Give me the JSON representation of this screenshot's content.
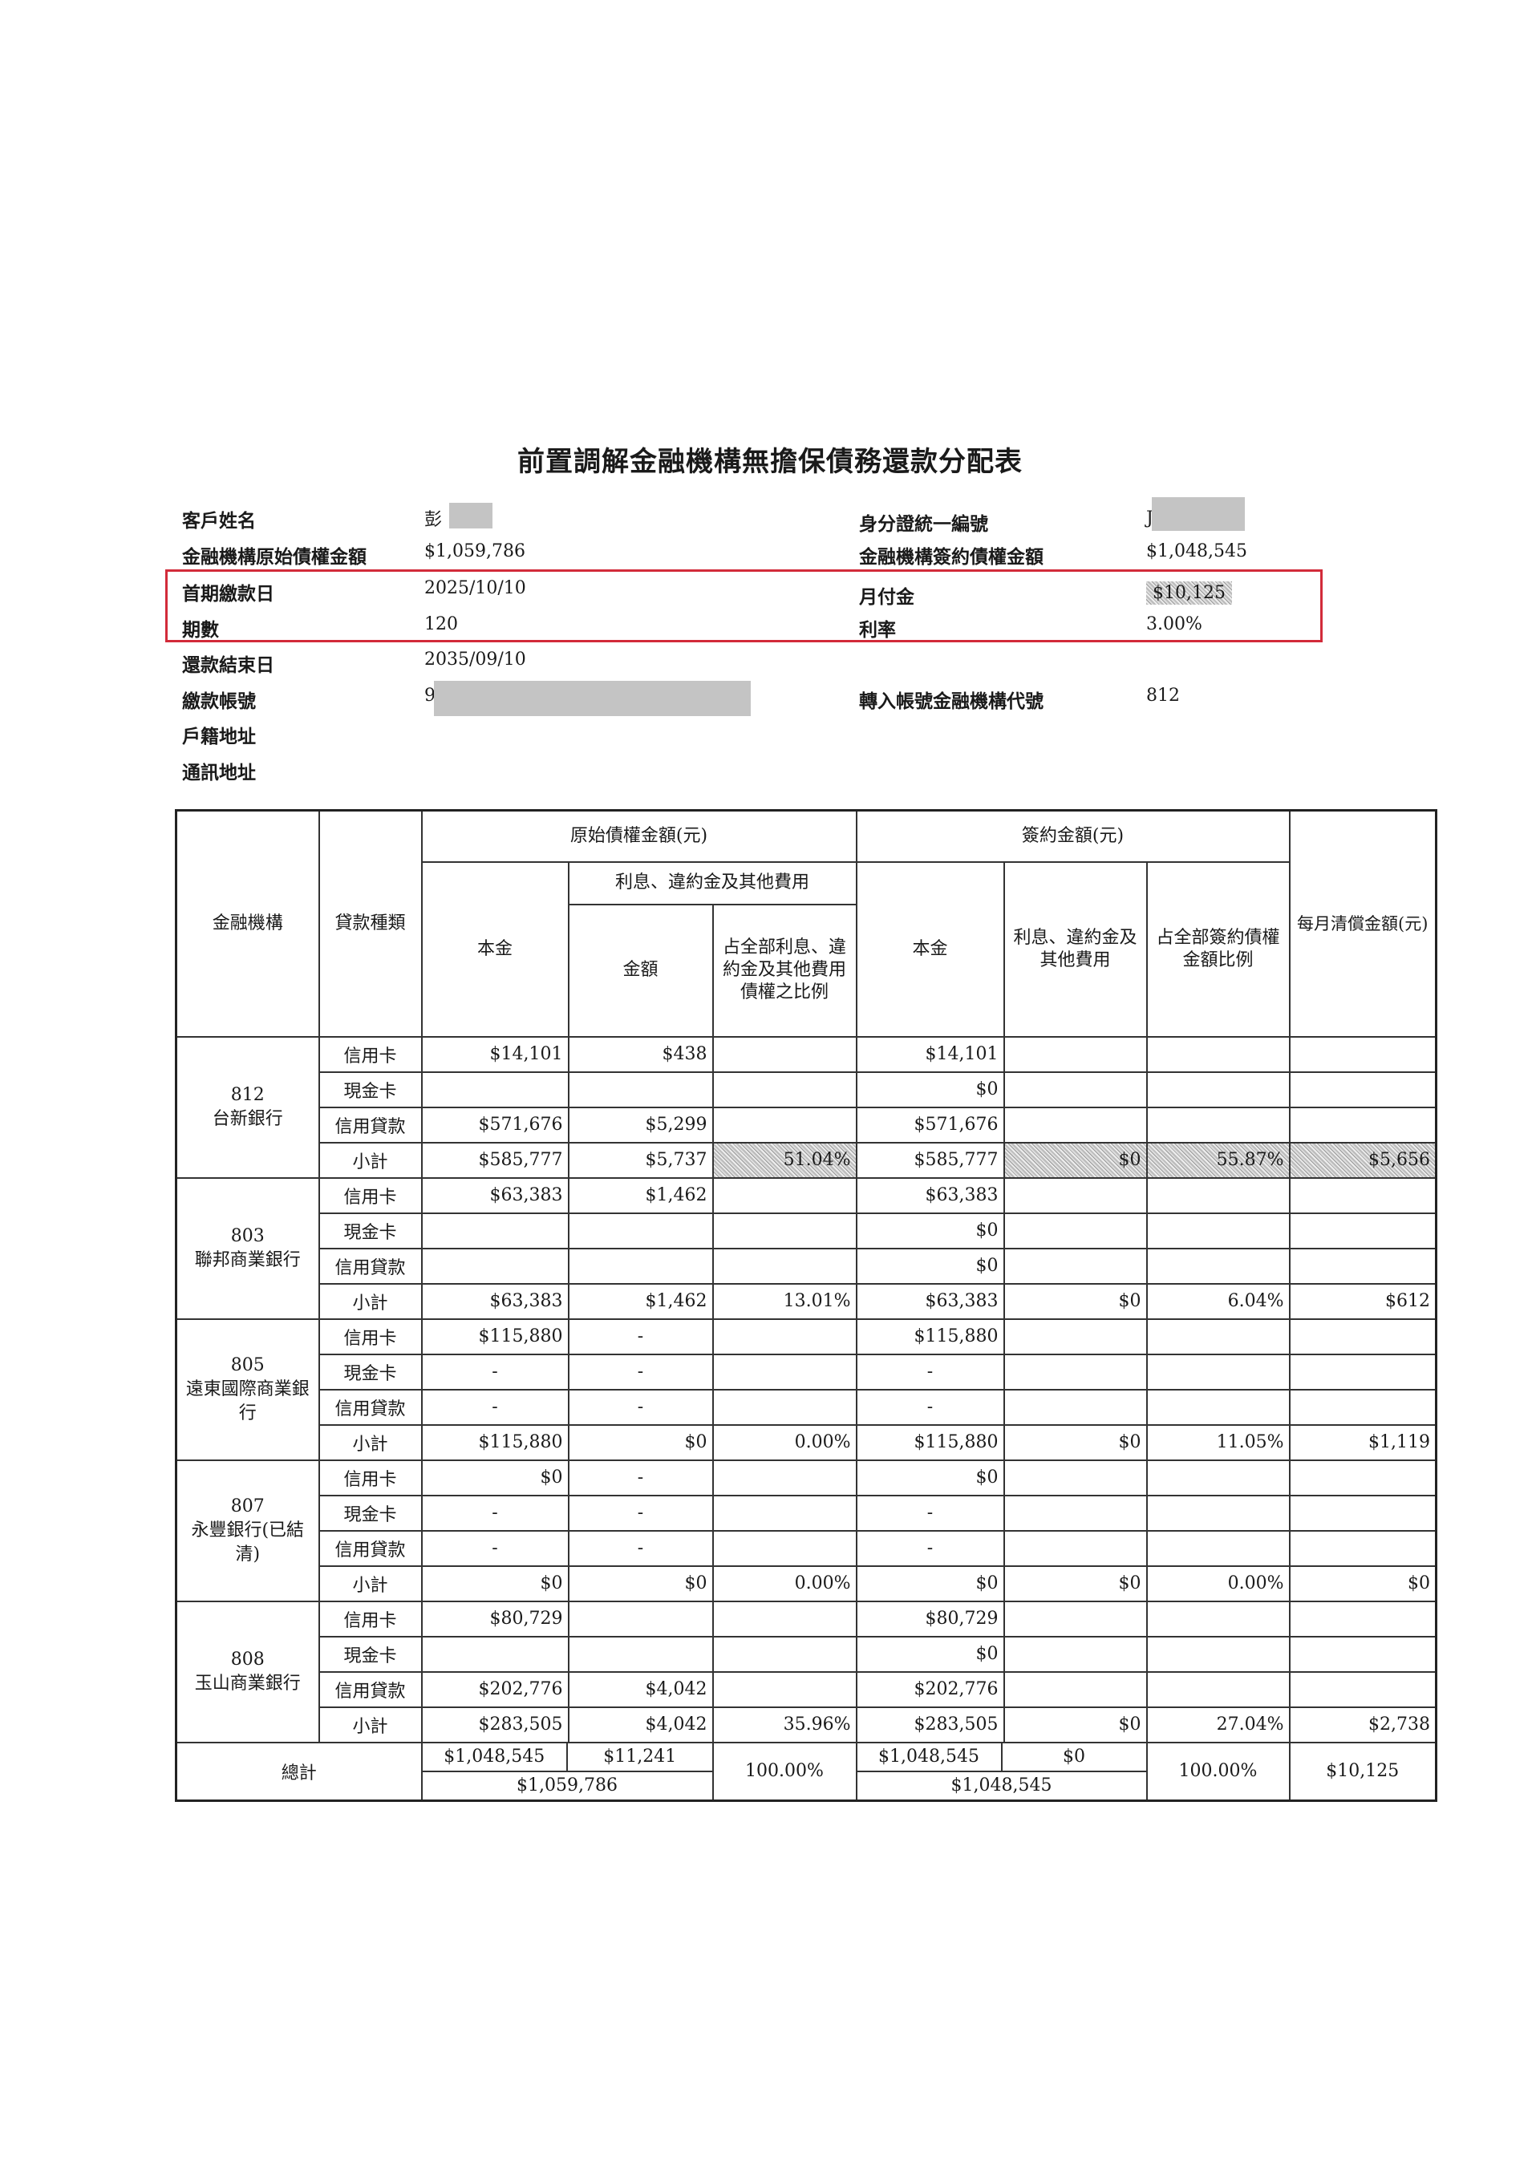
{
  "title": "前置調解金融機構無擔保債務還款分配表",
  "info_left": [
    {
      "label": "客戶姓名",
      "value": "彭"
    },
    {
      "label": "金融機構原始債權金額",
      "value": "$1,059,786"
    },
    {
      "label": "首期繳款日",
      "value": "2025/10/10"
    },
    {
      "label": "期數",
      "value": "120"
    },
    {
      "label": "還款結束日",
      "value": "2035/09/10"
    },
    {
      "label": "繳款帳號",
      "value": "9"
    },
    {
      "label": "戶籍地址",
      "value": ""
    },
    {
      "label": "通訊地址",
      "value": ""
    }
  ],
  "info_right": [
    {
      "label": "身分證統一編號",
      "value": "J"
    },
    {
      "label": "金融機構簽約債權金額",
      "value": "$1,048,545"
    },
    {
      "label": "月付金",
      "value": "$10,125"
    },
    {
      "label": "利率",
      "value": "3.00%"
    },
    {
      "label": "",
      "value": ""
    },
    {
      "label": "轉入帳號金融機構代號",
      "value": "812"
    }
  ],
  "highlight_color": "#d22b3a",
  "table": {
    "headers": {
      "institution": "金融機構",
      "loan_type": "貸款種類",
      "original_group": "原始債權金額(元)",
      "principal": "本金",
      "interest_group": "利息、違約金及其他費用",
      "amount": "金額",
      "interest_ratio": "占全部利息、違約金及其他費用債權之比例",
      "contract_group": "簽約金額(元)",
      "contract_principal": "本金",
      "contract_interest": "利息、違約金及其他費用",
      "contract_ratio": "占全部簽約債權金額比例",
      "monthly": "每月清償金額(元)"
    },
    "banks": [
      {
        "code": "812",
        "name": "台新銀行",
        "rows": [
          {
            "type": "信用卡",
            "c": [
              "$14,101",
              "$438",
              "",
              "$14,101",
              "",
              "",
              ""
            ]
          },
          {
            "type": "現金卡",
            "c": [
              "",
              "",
              "",
              "$0",
              "",
              "",
              ""
            ]
          },
          {
            "type": "信用貸款",
            "c": [
              "$571,676",
              "$5,299",
              "",
              "$571,676",
              "",
              "",
              ""
            ]
          },
          {
            "type": "小計",
            "c": [
              "$585,777",
              "$5,737",
              "51.04%",
              "$585,777",
              "$0",
              "55.87%",
              "$5,656"
            ],
            "shaded": true
          }
        ]
      },
      {
        "code": "803",
        "name": "聯邦商業銀行",
        "rows": [
          {
            "type": "信用卡",
            "c": [
              "$63,383",
              "$1,462",
              "",
              "$63,383",
              "",
              "",
              ""
            ]
          },
          {
            "type": "現金卡",
            "c": [
              "",
              "",
              "",
              "$0",
              "",
              "",
              ""
            ]
          },
          {
            "type": "信用貸款",
            "c": [
              "",
              "",
              "",
              "$0",
              "",
              "",
              ""
            ]
          },
          {
            "type": "小計",
            "c": [
              "$63,383",
              "$1,462",
              "13.01%",
              "$63,383",
              "$0",
              "6.04%",
              "$612"
            ]
          }
        ]
      },
      {
        "code": "805",
        "name": "遠東國際商業銀行",
        "rows": [
          {
            "type": "信用卡",
            "c": [
              "$115,880",
              "-",
              "",
              "$115,880",
              "",
              "",
              ""
            ]
          },
          {
            "type": "現金卡",
            "c": [
              "-",
              "-",
              "",
              "-",
              "",
              "",
              ""
            ]
          },
          {
            "type": "信用貸款",
            "c": [
              "-",
              "-",
              "",
              "-",
              "",
              "",
              ""
            ]
          },
          {
            "type": "小計",
            "c": [
              "$115,880",
              "$0",
              "0.00%",
              "$115,880",
              "$0",
              "11.05%",
              "$1,119"
            ]
          }
        ]
      },
      {
        "code": "807",
        "name": "永豐銀行(已結清)",
        "rows": [
          {
            "type": "信用卡",
            "c": [
              "$0",
              "-",
              "",
              "$0",
              "",
              "",
              ""
            ]
          },
          {
            "type": "現金卡",
            "c": [
              "-",
              "-",
              "",
              "-",
              "",
              "",
              ""
            ]
          },
          {
            "type": "信用貸款",
            "c": [
              "-",
              "-",
              "",
              "-",
              "",
              "",
              ""
            ]
          },
          {
            "type": "小計",
            "c": [
              "$0",
              "$0",
              "0.00%",
              "$0",
              "$0",
              "0.00%",
              "$0"
            ]
          }
        ]
      },
      {
        "code": "808",
        "name": "玉山商業銀行",
        "rows": [
          {
            "type": "信用卡",
            "c": [
              "$80,729",
              "",
              "",
              "$80,729",
              "",
              "",
              ""
            ]
          },
          {
            "type": "現金卡",
            "c": [
              "",
              "",
              "",
              "$0",
              "",
              "",
              ""
            ]
          },
          {
            "type": "信用貸款",
            "c": [
              "$202,776",
              "$4,042",
              "",
              "$202,776",
              "",
              "",
              ""
            ]
          },
          {
            "type": "小計",
            "c": [
              "$283,505",
              "$4,042",
              "35.96%",
              "$283,505",
              "$0",
              "27.04%",
              "$2,738"
            ]
          }
        ]
      }
    ],
    "total": {
      "label": "總計",
      "principal": "$1,048,545",
      "interest": "$11,241",
      "original_sum": "$1,059,786",
      "interest_ratio": "100.00%",
      "contract_principal": "$1,048,545",
      "contract_interest": "$0",
      "contract_sum": "$1,048,545",
      "contract_ratio": "100.00%",
      "monthly": "$10,125"
    }
  }
}
